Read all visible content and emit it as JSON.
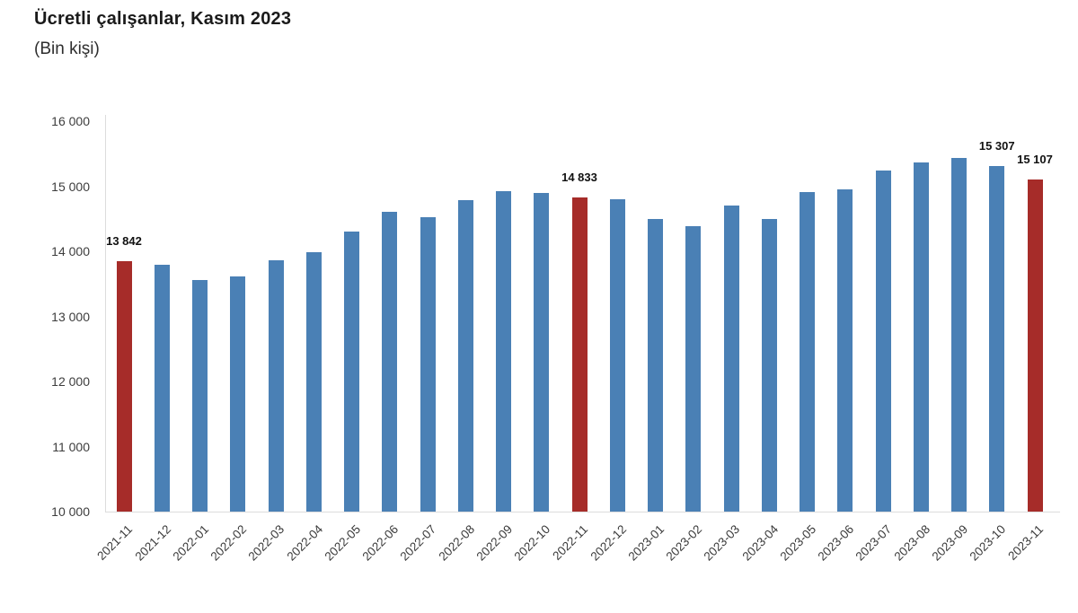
{
  "header": {
    "title": "Ücretli çalışanlar, Kasım 2023",
    "subtitle": "(Bin kişi)"
  },
  "chart_data": {
    "type": "bar",
    "title": "Ücretli çalışanlar, Kasım 2023",
    "subtitle": "(Bin kişi)",
    "unit": "Bin kişi",
    "categories": [
      "2021-11",
      "2021-12",
      "2022-01",
      "2022-02",
      "2022-03",
      "2022-04",
      "2022-05",
      "2022-06",
      "2022-07",
      "2022-08",
      "2022-09",
      "2022-10",
      "2022-11",
      "2022-12",
      "2023-01",
      "2023-02",
      "2023-03",
      "2023-04",
      "2023-05",
      "2023-06",
      "2023-07",
      "2023-08",
      "2023-09",
      "2023-10",
      "2023-11"
    ],
    "values": [
      13842,
      13790,
      13560,
      13610,
      13860,
      13990,
      14310,
      14610,
      14530,
      14780,
      14920,
      14890,
      14833,
      14800,
      14500,
      14390,
      14700,
      14500,
      14910,
      14950,
      15240,
      15370,
      15430,
      15307,
      15107
    ],
    "highlighted_categories": [
      "2021-11",
      "2022-11",
      "2023-11"
    ],
    "data_labels": [
      {
        "category": "2021-11",
        "text": "13 842"
      },
      {
        "category": "2022-11",
        "text": "14 833"
      },
      {
        "category": "2023-10",
        "text": "15 307"
      },
      {
        "category": "2023-11",
        "text": "15 107"
      }
    ],
    "ylim": [
      10000,
      16000
    ],
    "ytick_step": 1000,
    "ytick_labels": [
      "10 000",
      "11 000",
      "12 000",
      "13 000",
      "14 000",
      "15 000",
      "16 000"
    ],
    "xlabel": "",
    "ylabel": "",
    "grid": false,
    "legend": null,
    "colors": {
      "bar": "#4A80B5",
      "highlight": "#A62C29",
      "axis": "#DCDCDC",
      "tick_label": "#3D3D3D",
      "data_label": "#111111",
      "background": "#FFFFFF"
    }
  }
}
